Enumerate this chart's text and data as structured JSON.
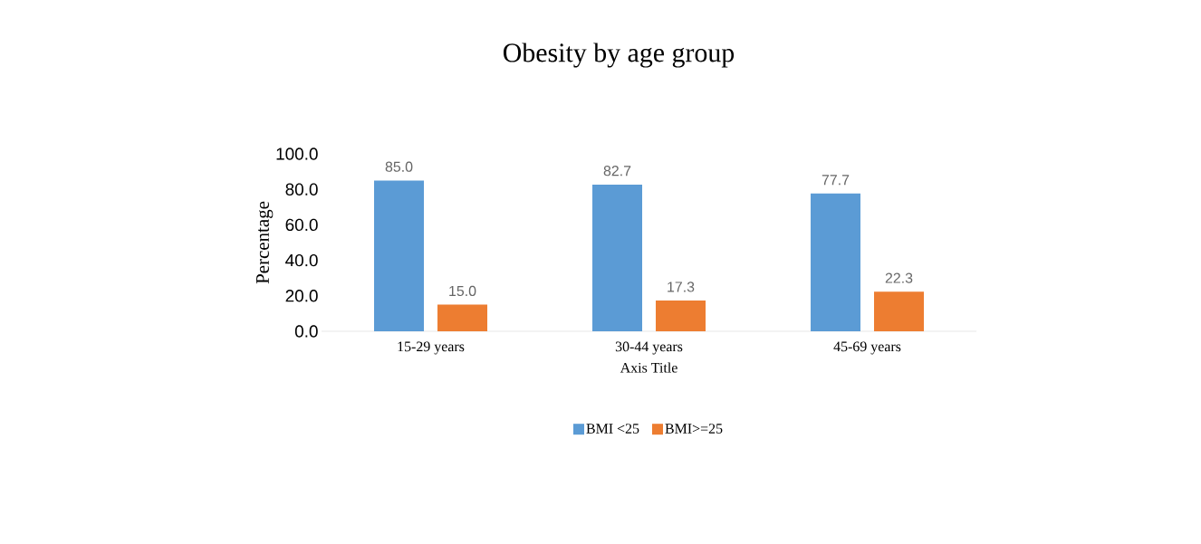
{
  "chart_data": {
    "type": "bar",
    "title": "Obesity by age group",
    "xlabel": "Axis Title",
    "ylabel": "Percentage",
    "categories": [
      "15-29 years",
      "30-44 years",
      "45-69 years"
    ],
    "series": [
      {
        "name": "BMI <25",
        "color": "#5b9bd5",
        "values": [
          85.0,
          82.7,
          77.7
        ],
        "value_labels": [
          "85.0",
          "82.7",
          "77.7"
        ]
      },
      {
        "name": "BMI>=25",
        "color": "#ed7d31",
        "values": [
          15.0,
          17.3,
          22.3
        ],
        "value_labels": [
          "15.0",
          "17.3",
          "22.3"
        ]
      }
    ],
    "ylim": [
      0,
      100
    ],
    "yticks": [
      {
        "value": 0,
        "label": "0.0"
      },
      {
        "value": 20,
        "label": "20.0"
      },
      {
        "value": 40,
        "label": "40.0"
      },
      {
        "value": 60,
        "label": "60.0"
      },
      {
        "value": 80,
        "label": "80.0"
      },
      {
        "value": 100,
        "label": "100.0"
      }
    ],
    "grid": false,
    "legend": "bottom"
  }
}
